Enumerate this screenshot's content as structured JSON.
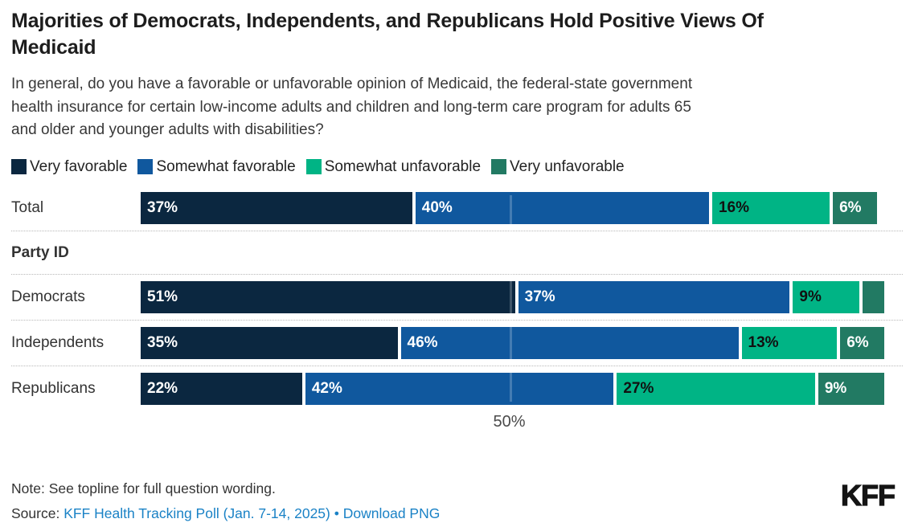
{
  "chart_data": {
    "type": "bar",
    "variant": "stacked-horizontal",
    "title_lines": [
      "Majorities of Democrats, Independents, and Republicans Hold Positive Views Of",
      "Medicaid"
    ],
    "subtitle_lines": [
      "In general, do you have a favorable or unfavorable opinion of Medicaid, the federal-state government",
      "health insurance for certain low-income adults and children and long-term care program for adults 65",
      "and older and younger adults with disabilities?"
    ],
    "categories": [
      "Total",
      "Democrats",
      "Independents",
      "Republicans"
    ],
    "section_label": "Party ID",
    "section_before_category": "Democrats",
    "series": [
      {
        "name": "Very favorable",
        "color": "#0b2740",
        "label_color": "#ffffff",
        "values": [
          37,
          51,
          35,
          22
        ]
      },
      {
        "name": "Somewhat favorable",
        "color": "#10589e",
        "label_color": "#ffffff",
        "values": [
          40,
          37,
          46,
          42
        ]
      },
      {
        "name": "Somewhat unfavorable",
        "color": "#00b485",
        "label_color": "#111111",
        "values": [
          16,
          9,
          13,
          27
        ]
      },
      {
        "name": "Very unfavorable",
        "color": "#227a63",
        "label_color": "#ffffff",
        "values": [
          6,
          3,
          6,
          9
        ]
      }
    ],
    "data_labels": {
      "Total": [
        "37%",
        "40%",
        "16%",
        "6%"
      ],
      "Democrats": [
        "51%",
        "37%",
        "9%",
        ""
      ],
      "Independents": [
        "35%",
        "46%",
        "13%",
        "6%"
      ],
      "Republicans": [
        "22%",
        "42%",
        "27%",
        "9%"
      ]
    },
    "xlim": [
      0,
      100
    ],
    "axis_tick": {
      "value": 50,
      "label": "50%"
    },
    "legend_position": "top",
    "grid": "vertical-line-at-50"
  },
  "footer": {
    "note": "Note: See topline for full question wording.",
    "source_prefix": "Source: ",
    "source_link": "KFF Health Tracking Poll (Jan. 7-14, 2025)",
    "separator": " • ",
    "download_link": "Download PNG",
    "logo": "KFF",
    "link_color": "#1a82c6"
  }
}
